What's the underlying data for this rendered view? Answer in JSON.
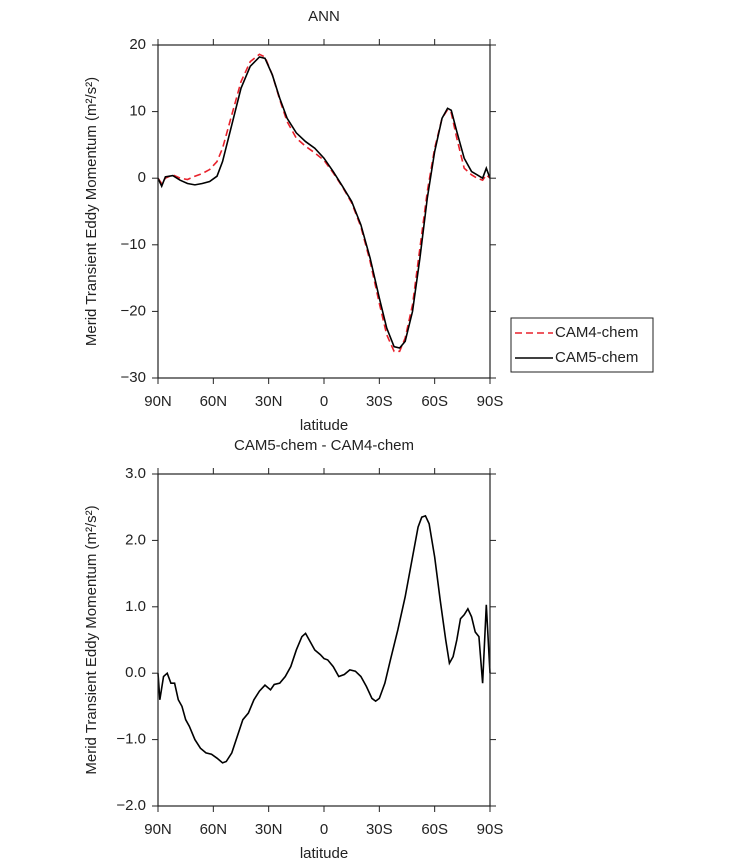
{
  "chart_data": [
    {
      "type": "line",
      "title": "ANN",
      "xlabel": "latitude",
      "ylabel": "Merid Transient Eddy Momentum (m²/s²)",
      "x": [
        90,
        88,
        86,
        82,
        78,
        74,
        70,
        66,
        62,
        58,
        55,
        50,
        45,
        40,
        35,
        32,
        28,
        24,
        20,
        15,
        10,
        5,
        0,
        -5,
        -10,
        -15,
        -20,
        -25,
        -30,
        -34,
        -38,
        -41,
        -44,
        -48,
        -52,
        -56,
        -60,
        -64,
        -67,
        -69,
        -72,
        -76,
        -80,
        -83,
        -86,
        -88,
        -90
      ],
      "series": [
        {
          "name": "CAM4-chem",
          "color": "#e8212b",
          "dash": true,
          "values": [
            0,
            -0.8,
            0,
            0.5,
            0,
            -0.2,
            0.3,
            0.7,
            1.3,
            2.5,
            4.5,
            9.5,
            14.5,
            17.5,
            18.6,
            18.2,
            15.5,
            11.8,
            8.5,
            6,
            4.8,
            3.8,
            2.7,
            0.8,
            -1.3,
            -3.7,
            -7.3,
            -12.5,
            -18.8,
            -23.5,
            -26,
            -26,
            -24,
            -19,
            -10.5,
            -2,
            4.5,
            9,
            10.3,
            9.8,
            6,
            1.5,
            0.5,
            0,
            -0.3,
            0.5,
            0
          ]
        },
        {
          "name": "CAM5-chem",
          "color": "#000000",
          "dash": false,
          "values": [
            0,
            -1.2,
            0.2,
            0.4,
            -0.3,
            -0.8,
            -1,
            -0.8,
            -0.5,
            0.3,
            2.5,
            8,
            13.5,
            16.8,
            18.2,
            18,
            15.5,
            12,
            9,
            6.8,
            5.5,
            4.5,
            3,
            1,
            -1.2,
            -3.5,
            -7,
            -12,
            -18,
            -22.5,
            -25.3,
            -25.5,
            -24.5,
            -20,
            -12,
            -3,
            4,
            9,
            10.5,
            10.2,
            7,
            3,
            1,
            0.5,
            0,
            1.5,
            0
          ]
        }
      ],
      "xlim": [
        90,
        -90
      ],
      "xticks": [
        {
          "value": 90,
          "label": "90N"
        },
        {
          "value": 60,
          "label": "60N"
        },
        {
          "value": 30,
          "label": "30N"
        },
        0,
        {
          "value": -30,
          "label": "30S"
        },
        {
          "value": -60,
          "label": "60S"
        },
        {
          "value": -90,
          "label": "90S"
        }
      ],
      "ylim": [
        -30,
        20
      ],
      "yticks": [
        {
          "value": -30,
          "label": "−30"
        },
        {
          "value": -20,
          "label": "−20"
        },
        {
          "value": -10,
          "label": "−10"
        },
        0,
        10,
        20
      ],
      "legend": "outside-right"
    },
    {
      "type": "line",
      "title": "CAM5-chem - CAM4-chem",
      "xlabel": "latitude",
      "ylabel": "Merid Transient Eddy Momentum (m²/s²)",
      "x": [
        90,
        89,
        87,
        85,
        83,
        81,
        79,
        77,
        75,
        73,
        70,
        67,
        64,
        61,
        58,
        55,
        53,
        50,
        47,
        44,
        41,
        38,
        35,
        32,
        29,
        27,
        24,
        21,
        18,
        15,
        12,
        10,
        8,
        5,
        2,
        0,
        -2,
        -5,
        -8,
        -11,
        -14,
        -17,
        -20,
        -23,
        -26,
        -28,
        -30,
        -33,
        -36,
        -40,
        -44,
        -48,
        -51,
        -53,
        -55,
        -57,
        -60,
        -63,
        -66,
        -68,
        -70,
        -72,
        -74,
        -76,
        -78,
        -80,
        -82,
        -84,
        -86,
        -88,
        -90
      ],
      "values": [
        0,
        -0.4,
        -0.05,
        0,
        -0.15,
        -0.15,
        -0.4,
        -0.5,
        -0.7,
        -0.8,
        -1.0,
        -1.13,
        -1.2,
        -1.22,
        -1.28,
        -1.35,
        -1.33,
        -1.2,
        -0.95,
        -0.7,
        -0.6,
        -0.4,
        -0.27,
        -0.18,
        -0.25,
        -0.17,
        -0.15,
        -0.05,
        0.1,
        0.35,
        0.55,
        0.6,
        0.5,
        0.35,
        0.28,
        0.22,
        0.2,
        0.1,
        -0.05,
        -0.02,
        0.05,
        0.03,
        -0.05,
        -0.2,
        -0.38,
        -0.42,
        -0.38,
        -0.15,
        0.2,
        0.65,
        1.15,
        1.75,
        2.2,
        2.35,
        2.37,
        2.25,
        1.75,
        1.1,
        0.5,
        0.15,
        0.25,
        0.5,
        0.82,
        0.88,
        0.97,
        0.85,
        0.62,
        0.55,
        -0.15,
        1.03,
        0
      ],
      "color": "#000000",
      "xlim": [
        90,
        -90
      ],
      "xticks": [
        {
          "value": 90,
          "label": "90N"
        },
        {
          "value": 60,
          "label": "60N"
        },
        {
          "value": 30,
          "label": "30N"
        },
        0,
        {
          "value": -30,
          "label": "30S"
        },
        {
          "value": -60,
          "label": "60S"
        },
        {
          "value": -90,
          "label": "90S"
        }
      ],
      "ylim": [
        -2,
        3
      ],
      "yticks": [
        {
          "value": -2,
          "label": "−2.0"
        },
        {
          "value": -1,
          "label": "−1.0"
        },
        {
          "value": 0,
          "label": "0.0"
        },
        {
          "value": 1,
          "label": "1.0"
        },
        {
          "value": 2,
          "label": "2.0"
        },
        {
          "value": 3,
          "label": "3.0"
        }
      ]
    }
  ]
}
